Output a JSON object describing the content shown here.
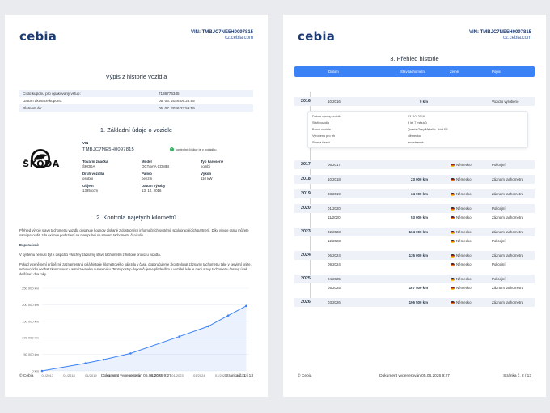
{
  "brand": {
    "logo": "cebia",
    "accent": "#3b82f6",
    "navy": "#1d3b73"
  },
  "header": {
    "vin": "VIN: TMBJC7NE5H0097815",
    "site": "cz.cebia.com"
  },
  "page1": {
    "title": "Výpis z historie vozidla",
    "info_rows": [
      {
        "label": "Číslo kuponu pro opakovaný vstup:",
        "value": "7136776345"
      },
      {
        "label": "Datum aktivace kuponu:",
        "value": "05. 06. 2026 09:26:55"
      },
      {
        "label": "Platnost do:",
        "value": "05. 07. 2026 23:59:59"
      }
    ],
    "section1": "1. Základní údaje o vozidle",
    "vehicle": {
      "brand_word": "ŠKODA",
      "vin_label": "VIN",
      "vin": "TMBJC7NE5H0097815",
      "check_text": "kontrolní číslice je v pořádku",
      "fields": [
        {
          "label": "Tovární značka",
          "value": "ŠKODA"
        },
        {
          "label": "Model",
          "value": "OCTAVIA COMBI"
        },
        {
          "label": "Typ karoserie",
          "value": "kombi"
        },
        {
          "label": "Druh vozidla",
          "value": "osobní"
        },
        {
          "label": "Palivo",
          "value": "benzín"
        },
        {
          "label": "Výkon",
          "value": "110 kW"
        },
        {
          "label": "Objem",
          "value": "1395 ccm"
        },
        {
          "label": "Datum výroby",
          "value": "13. 10. 2016"
        }
      ]
    },
    "section2": "2. Kontrola najetých kilometrů",
    "para1": "Přehled vývoje stavu tachometru vozidla obsahuje hodnoty získané z dostupných informačních systémů spolupracujících partnerů. Díky vývoje grafu můžete sami posoudit, zda existuje podezření na manipulaci se stavem tachometru či nikoliv.",
    "note_title": "Doporučení:",
    "para2": "V systému nemusí být k dispozici všechny záznamy stavů tachometru z historie provozu vozidla.",
    "para3": "Pokud v ceně není průběžně zaznamenaná celá historie kilometrového nájezdu v čase, doporučujeme zkontrolovat záznamy tachometru také v servisní knize, nebo vozidlo nechat zkontrolovat v autorizovaném autoservisu. Tento postup doporučujeme především u vozidel, kde je mezi stavy tachometru časový úsek delší než dva roky.",
    "footer": {
      "left": "© Cebia",
      "center": "Dokument vygenerován 05.06.2026 9:27",
      "right": "Stránka č. 1 / 13"
    }
  },
  "chart_data": {
    "type": "line",
    "title": "",
    "xlabel": "",
    "ylabel": "",
    "x_ticks": [
      "01/2017",
      "01/2018",
      "01/2019",
      "01/2020",
      "01/2021",
      "01/2022",
      "01/2023",
      "01/2024",
      "01/2025",
      "01/2026"
    ],
    "y_ticks": [
      "0 km",
      "50 000 km",
      "100 000 km",
      "150 000 km",
      "200 000 km",
      "250 000 km"
    ],
    "ylim": [
      0,
      250000
    ],
    "grid": true,
    "series": [
      {
        "points": [
          {
            "x": "10/2016",
            "y": 0
          },
          {
            "x": "10/2018",
            "y": 23000
          },
          {
            "x": "08/2019",
            "y": 34000
          },
          {
            "x": "11/2020",
            "y": 53000
          },
          {
            "x": "02/2023",
            "y": 104000
          },
          {
            "x": "06/2024",
            "y": 135000
          },
          {
            "x": "05/2025",
            "y": 167500
          },
          {
            "x": "03/2026",
            "y": 196500
          }
        ]
      }
    ]
  },
  "page2": {
    "title": "3. Přehled historie",
    "columns": [
      "Datum",
      "Stav tachometru",
      "Země",
      "Popis"
    ],
    "detail": [
      {
        "label": "Datum výroby vozidla",
        "value": "13. 10. 2016"
      },
      {
        "label": "Stáří vozidla",
        "value": "9 let 7 měsíců"
      },
      {
        "label": "Barva vozidla",
        "value": "Quartz Grey Metallic - kód F6"
      },
      {
        "label": "Vyrobeno pro trh",
        "value": "Německo"
      },
      {
        "label": "Strana řízení",
        "value": "levostranné"
      }
    ],
    "rows": [
      {
        "year": "2016",
        "date": "10/2016",
        "km": "0 km",
        "country": "",
        "event": "Vozidlo vyrobeno"
      },
      {
        "year": "2017",
        "date": "06/2017",
        "km": "",
        "country": "Německo",
        "event": "Policejní"
      },
      {
        "year": "2018",
        "date": "10/2018",
        "km": "23 000 km",
        "country": "Německo",
        "event": "Záznam tachometru"
      },
      {
        "year": "2019",
        "date": "08/2019",
        "km": "34 000 km",
        "country": "Německo",
        "event": "Záznam tachometru"
      },
      {
        "year": "2020",
        "date": "01/2020",
        "km": "",
        "country": "Německo",
        "event": "Policejní"
      },
      {
        "year": "",
        "date": "11/2020",
        "km": "53 000 km",
        "country": "Německo",
        "event": "Záznam tachometru"
      },
      {
        "year": "2023",
        "date": "02/2023",
        "km": "104 000 km",
        "country": "Německo",
        "event": "Záznam tachometru"
      },
      {
        "year": "",
        "date": "12/2023",
        "km": "",
        "country": "Německo",
        "event": "Policejní"
      },
      {
        "year": "2024",
        "date": "06/2024",
        "km": "135 000 km",
        "country": "Německo",
        "event": "Záznam tachometru"
      },
      {
        "year": "",
        "date": "09/2024",
        "km": "",
        "country": "Německo",
        "event": "Policejní"
      },
      {
        "year": "2025",
        "date": "04/2025",
        "km": "",
        "country": "Německo",
        "event": "Policejní"
      },
      {
        "year": "",
        "date": "05/2025",
        "km": "167 500 km",
        "country": "Německo",
        "event": "Záznam tachometru"
      },
      {
        "year": "2026",
        "date": "03/2026",
        "km": "196 500 km",
        "country": "Německo",
        "event": "Záznam tachometru"
      }
    ],
    "footer": {
      "left": "© Cebia",
      "center": "Dokument vygenerován 05.06.2026 9:27",
      "right": "Stránka č. 2 / 13"
    }
  }
}
